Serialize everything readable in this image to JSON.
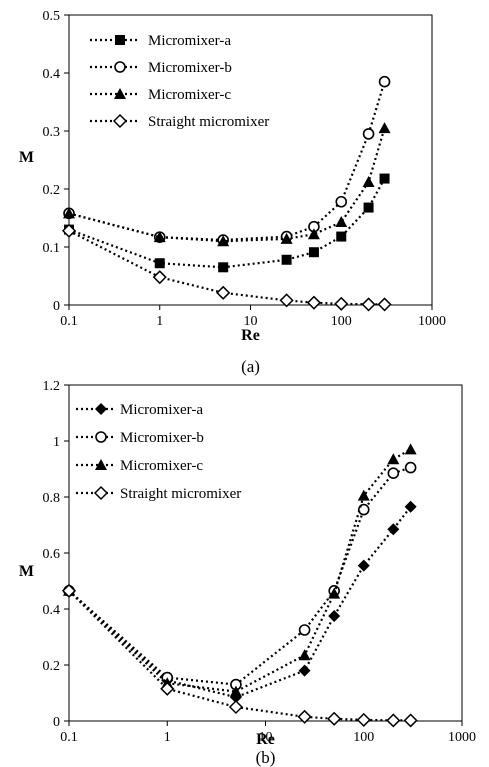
{
  "chart_data": [
    {
      "panel": "a",
      "caption": "(a)",
      "type": "scatter",
      "xlabel": "Re",
      "ylabel": "M",
      "x_scale": "log",
      "xlim": [
        0.1,
        1000
      ],
      "ylim": [
        0,
        0.5
      ],
      "x_ticks": [
        0.1,
        1,
        10,
        100,
        1000
      ],
      "x_tick_labels": [
        "0.1",
        "1",
        "10",
        "100",
        "1000"
      ],
      "y_ticks": [
        0,
        0.1,
        0.2,
        0.3,
        0.4,
        0.5
      ],
      "y_tick_labels": [
        "0",
        "0.1",
        "0.2",
        "0.3",
        "0.4",
        "0.5"
      ],
      "grid": false,
      "legend_position": "top-left",
      "line_style": "dotted",
      "series": [
        {
          "name": "Micromixer-a",
          "marker": "filled-square",
          "x": [
            0.1,
            1,
            5,
            25,
            50,
            100,
            200,
            300
          ],
          "y": [
            0.13,
            0.072,
            0.065,
            0.078,
            0.091,
            0.118,
            0.168,
            0.218
          ]
        },
        {
          "name": "Micromixer-b",
          "marker": "open-circle",
          "x": [
            0.1,
            1,
            5,
            25,
            50,
            100,
            200,
            300
          ],
          "y": [
            0.158,
            0.117,
            0.112,
            0.118,
            0.135,
            0.178,
            0.295,
            0.385
          ]
        },
        {
          "name": "Micromixer-c",
          "marker": "filled-triangle",
          "x": [
            0.1,
            1,
            5,
            25,
            50,
            100,
            200,
            300
          ],
          "y": [
            0.158,
            0.117,
            0.11,
            0.114,
            0.122,
            0.143,
            0.212,
            0.305
          ]
        },
        {
          "name": "Straight micromixer",
          "marker": "open-diamond",
          "x": [
            0.1,
            1,
            5,
            25,
            50,
            100,
            200,
            300
          ],
          "y": [
            0.128,
            0.048,
            0.021,
            0.008,
            0.004,
            0.002,
            0.001,
            0.001
          ]
        }
      ]
    },
    {
      "panel": "b",
      "caption": "(b)",
      "type": "scatter",
      "xlabel": "Re",
      "ylabel": "M",
      "x_scale": "log",
      "xlim": [
        0.1,
        1000
      ],
      "ylim": [
        0,
        1.2
      ],
      "x_ticks": [
        0.1,
        1,
        10,
        100,
        1000
      ],
      "x_tick_labels": [
        "0.1",
        "1",
        "10",
        "100",
        "1000"
      ],
      "y_ticks": [
        0,
        0.2,
        0.4,
        0.6,
        0.8,
        1,
        1.2
      ],
      "y_tick_labels": [
        "0",
        "0.2",
        "0.4",
        "0.6",
        "0.8",
        "1",
        "1.2"
      ],
      "grid": false,
      "legend_position": "top-left",
      "line_style": "dotted",
      "series": [
        {
          "name": "Micromixer-a",
          "marker": "filled-diamond",
          "x": [
            0.1,
            1,
            5,
            25,
            50,
            100,
            200,
            300
          ],
          "y": [
            0.465,
            0.145,
            0.085,
            0.18,
            0.375,
            0.555,
            0.685,
            0.765
          ]
        },
        {
          "name": "Micromixer-b",
          "marker": "open-circle",
          "x": [
            0.1,
            1,
            5,
            25,
            50,
            100,
            200,
            300
          ],
          "y": [
            0.465,
            0.155,
            0.13,
            0.325,
            0.465,
            0.755,
            0.885,
            0.905
          ]
        },
        {
          "name": "Micromixer-c",
          "marker": "filled-triangle",
          "x": [
            0.1,
            1,
            5,
            25,
            50,
            100,
            200,
            300
          ],
          "y": [
            0.465,
            0.135,
            0.105,
            0.235,
            0.455,
            0.805,
            0.935,
            0.97
          ]
        },
        {
          "name": "Straight micromixer",
          "marker": "open-diamond",
          "x": [
            0.1,
            1,
            5,
            25,
            50,
            100,
            200,
            300
          ],
          "y": [
            0.465,
            0.115,
            0.05,
            0.015,
            0.008,
            0.004,
            0.002,
            0.002
          ]
        }
      ]
    }
  ]
}
